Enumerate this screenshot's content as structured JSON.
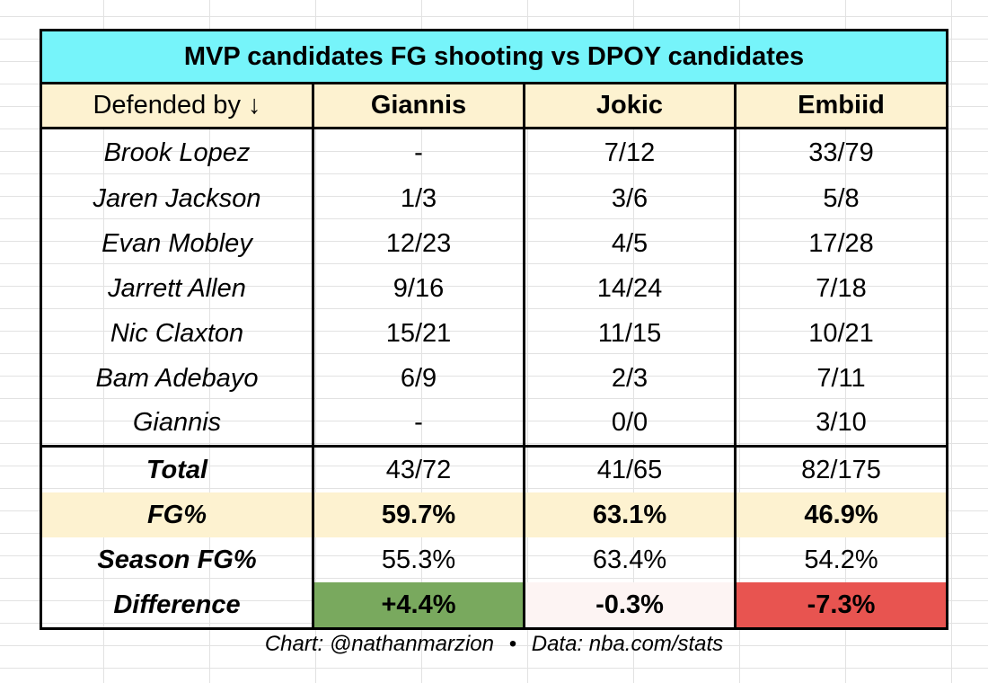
{
  "title": "MVP candidates FG shooting vs DPOY candidates",
  "columns": [
    "Defended by ↓",
    "Giannis",
    "Jokic",
    "Embiid"
  ],
  "rows": [
    {
      "defender": "Brook Lopez",
      "values": [
        "-",
        "7/12",
        "33/79"
      ]
    },
    {
      "defender": "Jaren Jackson",
      "values": [
        "1/3",
        "3/6",
        "5/8"
      ]
    },
    {
      "defender": "Evan Mobley",
      "values": [
        "12/23",
        "4/5",
        "17/28"
      ]
    },
    {
      "defender": "Jarrett Allen",
      "values": [
        "9/16",
        "14/24",
        "7/18"
      ]
    },
    {
      "defender": "Nic Claxton",
      "values": [
        "15/21",
        "11/15",
        "10/21"
      ]
    },
    {
      "defender": "Bam Adebayo",
      "values": [
        "6/9",
        "2/3",
        "7/11"
      ]
    },
    {
      "defender": "Giannis",
      "values": [
        "-",
        "0/0",
        "3/10"
      ]
    }
  ],
  "summary": [
    {
      "label": "Total",
      "values": [
        "43/72",
        "41/65",
        "82/175"
      ]
    },
    {
      "label": "FG%",
      "values": [
        "59.7%",
        "63.1%",
        "46.9%"
      ]
    },
    {
      "label": "Season FG%",
      "values": [
        "55.3%",
        "63.4%",
        "54.2%"
      ]
    },
    {
      "label": "Difference",
      "values": [
        "+4.4%",
        "-0.3%",
        "-7.3%"
      ]
    }
  ],
  "colors": {
    "title_bg": "#76f4fa",
    "header_bg": "#fdf2d0",
    "positive": "#79a95e",
    "neutral": "#fdf4f3",
    "negative": "#e85450"
  },
  "credit": {
    "chart": "Chart: @nathanmarzion",
    "separator": "•",
    "data": "Data: nba.com/stats"
  },
  "chart_data": {
    "type": "table",
    "title": "MVP candidates FG shooting vs DPOY candidates",
    "columns": [
      "Defended by ↓",
      "Giannis",
      "Jokic",
      "Embiid"
    ],
    "cells": [
      [
        "Brook Lopez",
        "-",
        "7/12",
        "33/79"
      ],
      [
        "Jaren Jackson",
        "1/3",
        "3/6",
        "5/8"
      ],
      [
        "Evan Mobley",
        "12/23",
        "4/5",
        "17/28"
      ],
      [
        "Jarrett Allen",
        "9/16",
        "14/24",
        "7/18"
      ],
      [
        "Nic Claxton",
        "15/21",
        "11/15",
        "10/21"
      ],
      [
        "Bam Adebayo",
        "6/9",
        "2/3",
        "7/11"
      ],
      [
        "Giannis",
        "-",
        "0/0",
        "3/10"
      ],
      [
        "Total",
        "43/72",
        "41/65",
        "82/175"
      ],
      [
        "FG%",
        "59.7%",
        "63.1%",
        "46.9%"
      ],
      [
        "Season FG%",
        "55.3%",
        "63.4%",
        "54.2%"
      ],
      [
        "Difference",
        "+4.4%",
        "-0.3%",
        "-7.3%"
      ]
    ]
  }
}
